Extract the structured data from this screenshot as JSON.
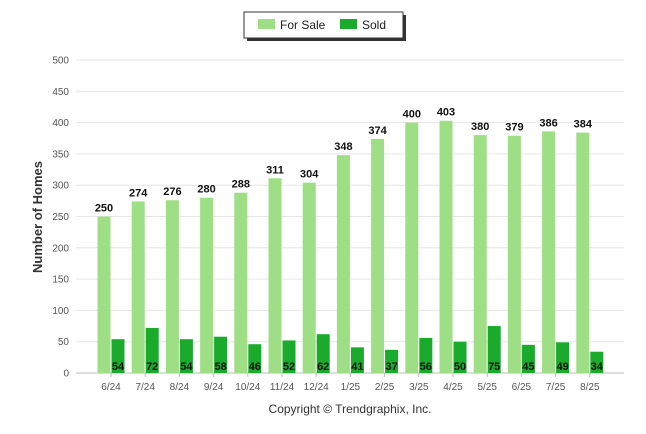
{
  "chart_data": {
    "type": "bar",
    "ylabel": "Number of Homes",
    "ylim": [
      0,
      500
    ],
    "yticks": [
      0,
      50,
      100,
      150,
      200,
      250,
      300,
      350,
      400,
      450,
      500
    ],
    "grid": true,
    "legend_position": "top-center",
    "categories": [
      "6/24",
      "7/24",
      "8/24",
      "9/24",
      "10/24",
      "11/24",
      "12/24",
      "1/25",
      "2/25",
      "3/25",
      "4/25",
      "5/25",
      "6/25",
      "7/25",
      "8/25"
    ],
    "series": [
      {
        "name": "For Sale",
        "color": "#9edf85",
        "values": [
          250,
          274,
          276,
          280,
          288,
          311,
          304,
          348,
          374,
          400,
          403,
          380,
          379,
          386,
          384
        ]
      },
      {
        "name": "Sold",
        "color": "#1aab2c",
        "values": [
          54,
          72,
          54,
          58,
          46,
          52,
          62,
          41,
          37,
          56,
          50,
          75,
          45,
          49,
          34
        ]
      }
    ]
  },
  "footer": {
    "copyright": "Copyright © Trendgraphix, Inc."
  }
}
